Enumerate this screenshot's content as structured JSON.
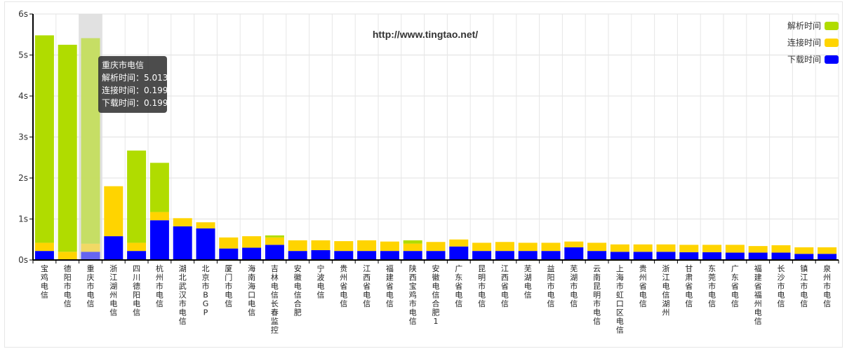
{
  "chart_data": {
    "type": "bar",
    "stacked": true,
    "title": "http://www.tingtao.net/",
    "ylim": [
      0,
      6
    ],
    "ytick_labels": [
      "0s",
      "1s",
      "2s",
      "3s",
      "4s",
      "5s",
      "6s"
    ],
    "grid": true,
    "legend_position": "top-right",
    "categories": [
      "宝鸡电信",
      "德阳市电信",
      "重庆市电信",
      "浙江湖州电信",
      "四川德阳电信",
      "杭州市电信",
      "湖北武汉市电信",
      "北京市BGP",
      "厦门市电信",
      "海南海口电信",
      "吉林电信长春监控",
      "安徽电信合肥",
      "宁波电信",
      "贵州省电信",
      "江西省电信",
      "福建省电信",
      "陕西宝鸡市电信",
      "安徽电信合肥1",
      "广东省电信",
      "昆明市电信",
      "江西省电信",
      "芜湖电信",
      "益阳市电信",
      "芜湖市电信",
      "云南昆明市电信",
      "上海市虹口区电信",
      "贵州省电信",
      "浙江电信湖州",
      "甘肃省电信",
      "东莞市电信",
      "广东省电信",
      "福建省福州电信",
      "长沙市电信",
      "镇江市电信",
      "泉州市电信"
    ],
    "series": [
      {
        "name": "下载时间",
        "color": "#0000ff",
        "values": [
          0.22,
          0.0,
          0.199,
          0.58,
          0.22,
          0.97,
          0.82,
          0.77,
          0.28,
          0.3,
          0.37,
          0.22,
          0.24,
          0.22,
          0.22,
          0.22,
          0.22,
          0.22,
          0.33,
          0.22,
          0.22,
          0.22,
          0.22,
          0.31,
          0.22,
          0.2,
          0.2,
          0.2,
          0.19,
          0.19,
          0.18,
          0.18,
          0.18,
          0.15,
          0.15
        ]
      },
      {
        "name": "连接时间",
        "color": "#ffd400",
        "values": [
          0.2,
          0.2,
          0.199,
          1.22,
          0.2,
          0.2,
          0.2,
          0.15,
          0.27,
          0.28,
          0.18,
          0.26,
          0.24,
          0.24,
          0.26,
          0.23,
          0.18,
          0.22,
          0.17,
          0.2,
          0.22,
          0.2,
          0.2,
          0.14,
          0.2,
          0.18,
          0.18,
          0.18,
          0.18,
          0.18,
          0.19,
          0.16,
          0.18,
          0.16,
          0.16
        ]
      },
      {
        "name": "解析时间",
        "color": "#b0dc00",
        "values": [
          5.06,
          5.05,
          5.013,
          0.0,
          2.25,
          1.2,
          0.0,
          0.0,
          0.0,
          0.0,
          0.05,
          0.0,
          0.0,
          0.0,
          0.0,
          0.0,
          0.08,
          0.0,
          0.0,
          0.0,
          0.0,
          0.0,
          0.0,
          0.0,
          0.0,
          0.0,
          0.0,
          0.0,
          0.0,
          0.0,
          0.0,
          0.0,
          0.0,
          0.0,
          0.0
        ]
      }
    ],
    "legend_entries": [
      "解析时间",
      "连接时间",
      "下载时间"
    ],
    "highlight_index": 2,
    "tooltip": {
      "title": "重庆市电信",
      "lines": [
        "解析时间：5.013",
        "连接时间：0.199",
        "下载时间：0.199"
      ]
    }
  }
}
